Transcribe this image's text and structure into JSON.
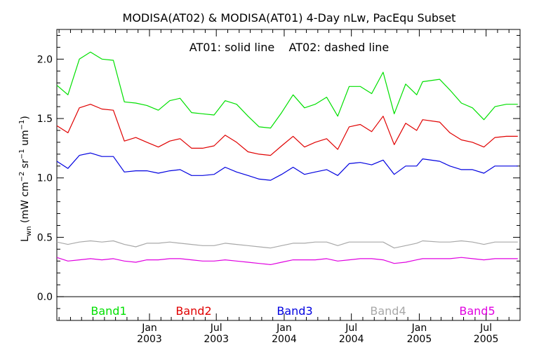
{
  "chart_data": {
    "type": "line",
    "title": "MODISA(AT02) & MODISA(AT01) 4-Day nLw, PacEqu Subset",
    "subtitle": "AT01: solid line    AT02: dashed line",
    "ylabel": "L_wn (mW cm^-2 sr^-1 um^-1)",
    "ylabel_parts": {
      "main": "L",
      "sub": "wn",
      "pre": " (mW cm",
      "sup1": "−2",
      "mid1": " sr",
      "sup2": "−1",
      "mid2": " um",
      "sup3": "−1",
      "post": ")"
    },
    "ylim": [
      -0.2,
      2.25
    ],
    "yticks": [
      0.0,
      0.5,
      1.0,
      1.5,
      2.0
    ],
    "ytick_labels": [
      "0.0",
      "0.5",
      "1.0",
      "1.5",
      "2.0"
    ],
    "xlim": [
      "2002-04-25",
      "2005-10-01"
    ],
    "xticks": [
      {
        "date": "2003-01-01",
        "month": "Jan",
        "year": "2003"
      },
      {
        "date": "2003-07-01",
        "month": "Jul",
        "year": "2003"
      },
      {
        "date": "2004-01-01",
        "month": "Jan",
        "year": "2004"
      },
      {
        "date": "2004-07-01",
        "month": "Jul",
        "year": "2004"
      },
      {
        "date": "2005-01-01",
        "month": "Jan",
        "year": "2005"
      },
      {
        "date": "2005-07-01",
        "month": "Jul",
        "year": "2005"
      }
    ],
    "x": [
      "2002-04-25",
      "2002-05-25",
      "2002-06-25",
      "2002-07-25",
      "2002-08-25",
      "2002-09-25",
      "2002-10-25",
      "2002-11-25",
      "2002-12-25",
      "2003-01-25",
      "2003-02-25",
      "2003-03-25",
      "2003-04-25",
      "2003-05-25",
      "2003-06-25",
      "2003-07-25",
      "2003-08-25",
      "2003-09-25",
      "2003-10-25",
      "2003-11-25",
      "2003-12-25",
      "2004-01-25",
      "2004-02-25",
      "2004-03-25",
      "2004-04-25",
      "2004-05-25",
      "2004-06-25",
      "2004-07-25",
      "2004-08-25",
      "2004-09-25",
      "2004-10-25",
      "2004-11-25",
      "2004-12-25",
      "2005-01-10",
      "2005-02-25",
      "2005-03-25",
      "2005-04-25",
      "2005-05-25",
      "2005-06-25",
      "2005-07-25",
      "2005-08-25",
      "2005-09-25"
    ],
    "series": [
      {
        "name": "Band1",
        "color": "#00e000",
        "values": [
          1.78,
          1.7,
          2.0,
          2.06,
          2.0,
          1.99,
          1.64,
          1.63,
          1.61,
          1.57,
          1.65,
          1.67,
          1.55,
          1.54,
          1.53,
          1.65,
          1.62,
          1.52,
          1.43,
          1.42,
          1.55,
          1.7,
          1.59,
          1.62,
          1.68,
          1.52,
          1.77,
          1.77,
          1.71,
          1.89,
          1.54,
          1.79,
          1.7,
          1.81,
          1.83,
          1.74,
          1.63,
          1.59,
          1.49,
          1.6,
          1.62,
          1.62
        ]
      },
      {
        "name": "Band2",
        "color": "#e00000",
        "values": [
          1.44,
          1.38,
          1.59,
          1.62,
          1.58,
          1.57,
          1.31,
          1.34,
          1.3,
          1.26,
          1.31,
          1.33,
          1.25,
          1.25,
          1.27,
          1.36,
          1.3,
          1.22,
          1.2,
          1.19,
          1.27,
          1.35,
          1.26,
          1.3,
          1.33,
          1.24,
          1.43,
          1.45,
          1.39,
          1.52,
          1.28,
          1.46,
          1.4,
          1.49,
          1.47,
          1.38,
          1.32,
          1.3,
          1.26,
          1.34,
          1.35,
          1.35
        ]
      },
      {
        "name": "Band3",
        "color": "#0000e0",
        "values": [
          1.14,
          1.08,
          1.19,
          1.21,
          1.18,
          1.18,
          1.05,
          1.06,
          1.06,
          1.04,
          1.06,
          1.07,
          1.02,
          1.02,
          1.03,
          1.09,
          1.05,
          1.02,
          0.99,
          0.98,
          1.03,
          1.09,
          1.03,
          1.05,
          1.07,
          1.02,
          1.12,
          1.13,
          1.11,
          1.15,
          1.03,
          1.1,
          1.1,
          1.16,
          1.14,
          1.1,
          1.07,
          1.07,
          1.04,
          1.1,
          1.1,
          1.1
        ]
      },
      {
        "name": "Band4",
        "color": "#a8a8a8",
        "values": [
          0.46,
          0.44,
          0.46,
          0.47,
          0.46,
          0.47,
          0.44,
          0.42,
          0.45,
          0.45,
          0.46,
          0.45,
          0.44,
          0.43,
          0.43,
          0.45,
          0.44,
          0.43,
          0.42,
          0.41,
          0.43,
          0.45,
          0.45,
          0.46,
          0.46,
          0.43,
          0.46,
          0.46,
          0.46,
          0.46,
          0.41,
          0.43,
          0.45,
          0.47,
          0.46,
          0.46,
          0.47,
          0.46,
          0.44,
          0.46,
          0.46,
          0.46
        ]
      },
      {
        "name": "Band5",
        "color": "#e000e0",
        "values": [
          0.33,
          0.3,
          0.31,
          0.32,
          0.31,
          0.32,
          0.3,
          0.29,
          0.31,
          0.31,
          0.32,
          0.32,
          0.31,
          0.3,
          0.3,
          0.31,
          0.3,
          0.29,
          0.28,
          0.27,
          0.29,
          0.31,
          0.31,
          0.31,
          0.32,
          0.3,
          0.31,
          0.32,
          0.32,
          0.31,
          0.28,
          0.29,
          0.31,
          0.32,
          0.32,
          0.32,
          0.33,
          0.32,
          0.31,
          0.32,
          0.32,
          0.32
        ]
      }
    ],
    "legend_placement": "bottom, inside plot below baseline",
    "grid": false,
    "background": "#ffffff",
    "axis_color": "#000000"
  }
}
